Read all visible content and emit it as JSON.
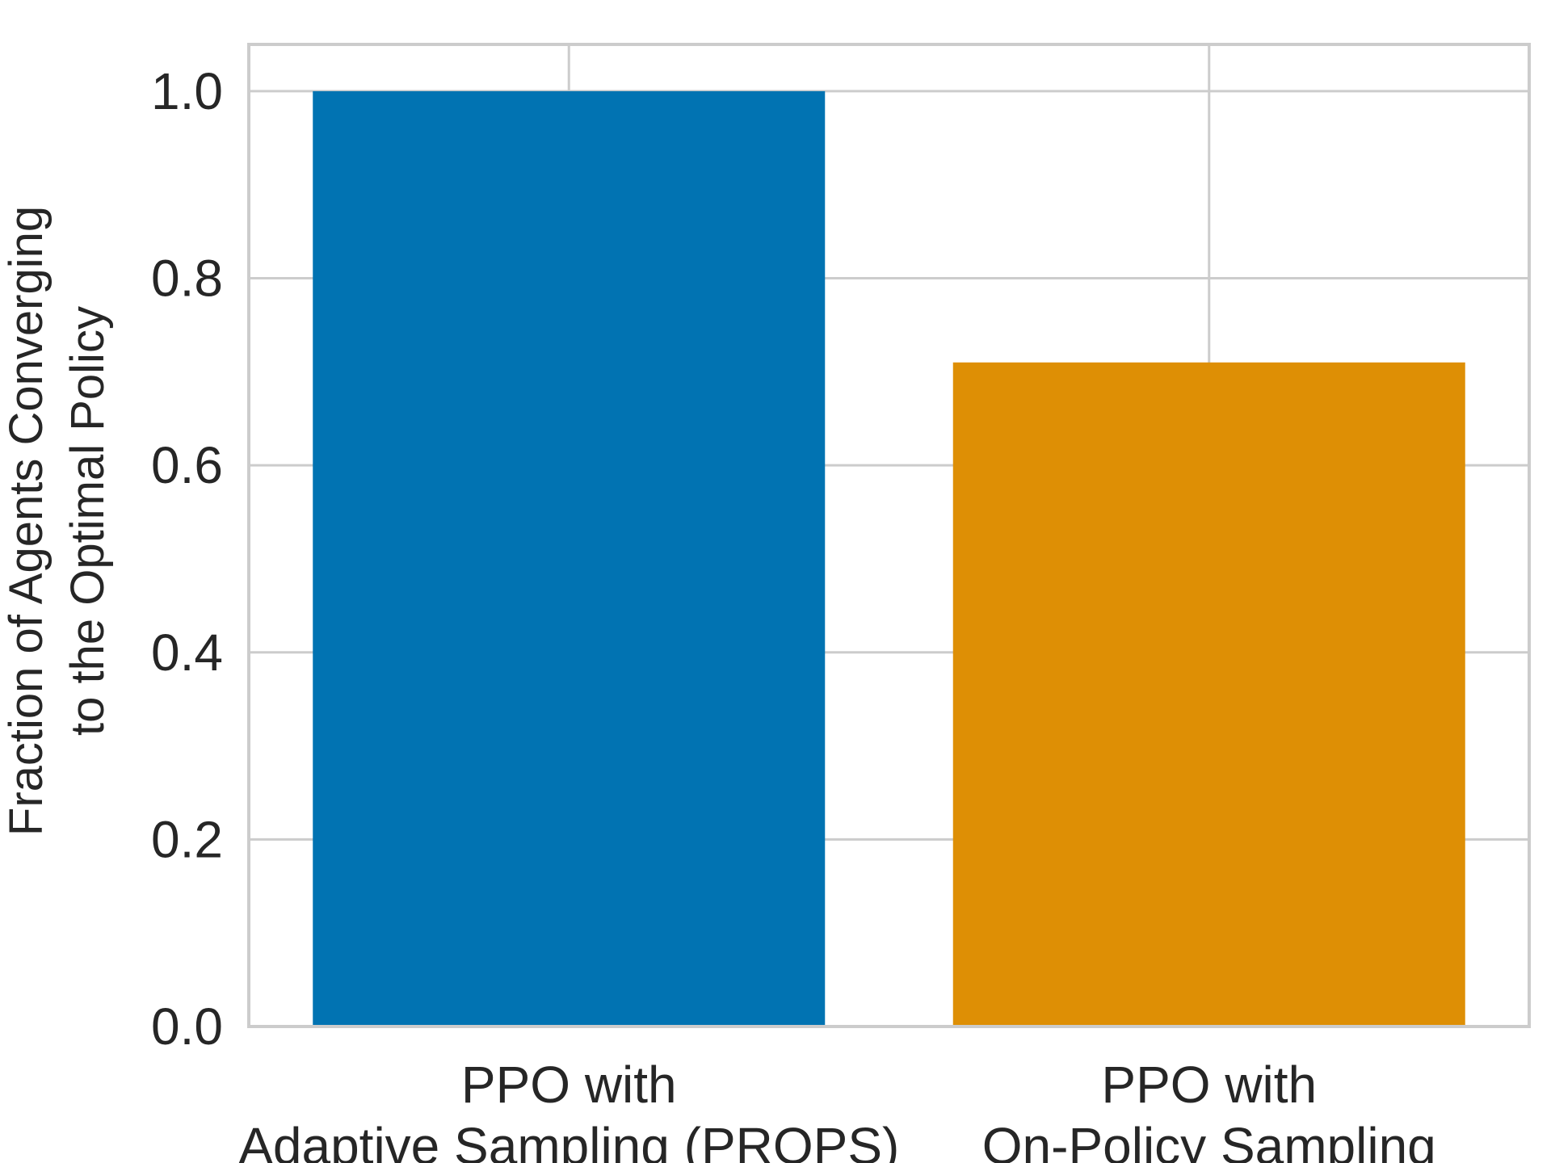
{
  "chart_data": {
    "type": "bar",
    "categories": [
      [
        "PPO with",
        "Adaptive Sampling (PROPS)"
      ],
      [
        "PPO with",
        "On-Policy Sampling"
      ]
    ],
    "values": [
      1.0,
      0.71
    ],
    "colors": [
      "#0173b2",
      "#de8f05"
    ],
    "ylabel": [
      "Fraction of Agents Converging",
      "to the Optimal Policy"
    ],
    "ylim": [
      0,
      1.05
    ],
    "yticks": [
      "0.0",
      "0.2",
      "0.4",
      "0.6",
      "0.8",
      "1.0"
    ],
    "grid": true,
    "grid_color": "#cccccc",
    "axes_color": "#cccccc"
  }
}
